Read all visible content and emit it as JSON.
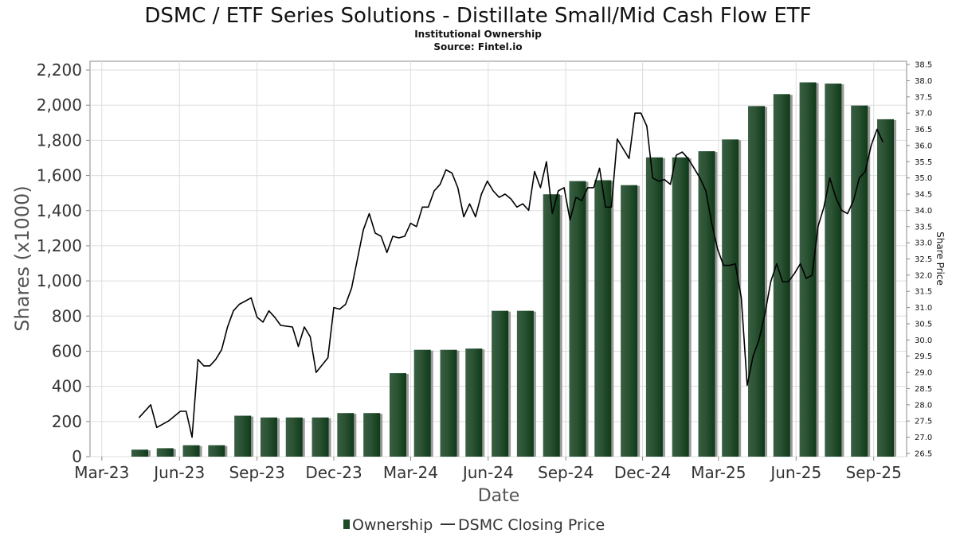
{
  "chart_data": {
    "type": "bar",
    "title": "DSMC / ETF Series Solutions - Distillate Small/Mid Cash Flow ETF",
    "subtitle": "Institutional Ownership",
    "source": "Source: Fintel.io",
    "xlabel": "Date",
    "ylabel": "Shares (x1000)",
    "y2label": "Share Price",
    "ylim": [
      0,
      2250
    ],
    "y2lim": [
      26.4,
      38.6
    ],
    "y_ticks": [
      0,
      200,
      400,
      600,
      800,
      1000,
      1200,
      1400,
      1600,
      1800,
      2000,
      2200
    ],
    "y_tick_labels": [
      "0",
      "200",
      "400",
      "600",
      "800",
      "1,000",
      "1,200",
      "1,400",
      "1,600",
      "1,800",
      "2,000",
      "2,200"
    ],
    "y2_ticks": [
      "26.5",
      "27.0",
      "27.5",
      "28.0",
      "28.5",
      "29.0",
      "29.5",
      "30.0",
      "30.5",
      "31.0",
      "31.5",
      "32.0",
      "32.5",
      "33.0",
      "33.5",
      "34.0",
      "34.5",
      "35.0",
      "35.5",
      "36.0",
      "36.5",
      "37.0",
      "37.5",
      "38.0",
      "38.5"
    ],
    "x_range": [
      "2023-02-15",
      "2025-10-10"
    ],
    "x_ticks": [
      {
        "date": "2023-03-01",
        "label": "Mar-23"
      },
      {
        "date": "2023-06-01",
        "label": "Jun-23"
      },
      {
        "date": "2023-09-01",
        "label": "Sep-23"
      },
      {
        "date": "2023-12-01",
        "label": "Dec-23"
      },
      {
        "date": "2024-03-01",
        "label": "Mar-24"
      },
      {
        "date": "2024-06-01",
        "label": "Jun-24"
      },
      {
        "date": "2024-09-01",
        "label": "Sep-24"
      },
      {
        "date": "2024-12-01",
        "label": "Dec-24"
      },
      {
        "date": "2025-03-01",
        "label": "Mar-25"
      },
      {
        "date": "2025-06-01",
        "label": "Jun-25"
      },
      {
        "date": "2025-09-01",
        "label": "Sep-25"
      }
    ],
    "series": [
      {
        "name": "Ownership",
        "kind": "bar",
        "color": "#1d4a27",
        "points": [
          {
            "date": "2023-04-15",
            "value": 40
          },
          {
            "date": "2023-05-15",
            "value": 48
          },
          {
            "date": "2023-06-15",
            "value": 65
          },
          {
            "date": "2023-07-15",
            "value": 65
          },
          {
            "date": "2023-08-15",
            "value": 233
          },
          {
            "date": "2023-09-15",
            "value": 223
          },
          {
            "date": "2023-10-15",
            "value": 223
          },
          {
            "date": "2023-11-15",
            "value": 223
          },
          {
            "date": "2023-12-15",
            "value": 248
          },
          {
            "date": "2024-01-15",
            "value": 248
          },
          {
            "date": "2024-02-15",
            "value": 475
          },
          {
            "date": "2024-03-15",
            "value": 608
          },
          {
            "date": "2024-04-15",
            "value": 608
          },
          {
            "date": "2024-05-15",
            "value": 615
          },
          {
            "date": "2024-06-15",
            "value": 830
          },
          {
            "date": "2024-07-15",
            "value": 830
          },
          {
            "date": "2024-08-15",
            "value": 1493
          },
          {
            "date": "2024-09-15",
            "value": 1568
          },
          {
            "date": "2024-10-15",
            "value": 1573
          },
          {
            "date": "2024-11-15",
            "value": 1545
          },
          {
            "date": "2024-12-15",
            "value": 1703
          },
          {
            "date": "2025-01-15",
            "value": 1703
          },
          {
            "date": "2025-02-15",
            "value": 1738
          },
          {
            "date": "2025-03-15",
            "value": 1805
          },
          {
            "date": "2025-04-15",
            "value": 1995
          },
          {
            "date": "2025-05-15",
            "value": 2063
          },
          {
            "date": "2025-06-15",
            "value": 2130
          },
          {
            "date": "2025-07-15",
            "value": 2123
          },
          {
            "date": "2025-08-15",
            "value": 1998
          },
          {
            "date": "2025-09-15",
            "value": 1920
          }
        ]
      },
      {
        "name": "DSMC Closing Price",
        "kind": "line",
        "axis": "right",
        "color": "#000000",
        "points": [
          [
            "2023-04-14",
            27.6
          ],
          [
            "2023-04-28",
            28.0
          ],
          [
            "2023-05-05",
            27.3
          ],
          [
            "2023-05-19",
            27.5
          ],
          [
            "2023-06-02",
            27.8
          ],
          [
            "2023-06-09",
            27.8
          ],
          [
            "2023-06-16",
            27.0
          ],
          [
            "2023-06-23",
            29.4
          ],
          [
            "2023-06-30",
            29.2
          ],
          [
            "2023-07-07",
            29.2
          ],
          [
            "2023-07-14",
            29.4
          ],
          [
            "2023-07-21",
            29.7
          ],
          [
            "2023-07-28",
            30.4
          ],
          [
            "2023-08-04",
            30.9
          ],
          [
            "2023-08-11",
            31.1
          ],
          [
            "2023-08-18",
            31.2
          ],
          [
            "2023-08-25",
            31.3
          ],
          [
            "2023-09-01",
            30.7
          ],
          [
            "2023-09-08",
            30.55
          ],
          [
            "2023-09-15",
            30.9
          ],
          [
            "2023-09-22",
            30.7
          ],
          [
            "2023-09-29",
            30.45
          ],
          [
            "2023-10-13",
            30.4
          ],
          [
            "2023-10-20",
            29.8
          ],
          [
            "2023-10-27",
            30.4
          ],
          [
            "2023-11-03",
            30.1
          ],
          [
            "2023-11-10",
            29.0
          ],
          [
            "2023-11-24",
            29.45
          ],
          [
            "2023-12-01",
            31.0
          ],
          [
            "2023-12-08",
            30.95
          ],
          [
            "2023-12-15",
            31.1
          ],
          [
            "2023-12-22",
            31.6
          ],
          [
            "2023-12-29",
            32.5
          ],
          [
            "2024-01-05",
            33.4
          ],
          [
            "2024-01-12",
            33.9
          ],
          [
            "2024-01-19",
            33.3
          ],
          [
            "2024-01-26",
            33.2
          ],
          [
            "2024-02-02",
            32.7
          ],
          [
            "2024-02-09",
            33.2
          ],
          [
            "2024-02-16",
            33.15
          ],
          [
            "2024-02-23",
            33.2
          ],
          [
            "2024-03-01",
            33.6
          ],
          [
            "2024-03-08",
            33.5
          ],
          [
            "2024-03-15",
            34.1
          ],
          [
            "2024-03-22",
            34.1
          ],
          [
            "2024-03-29",
            34.6
          ],
          [
            "2024-04-05",
            34.8
          ],
          [
            "2024-04-12",
            35.25
          ],
          [
            "2024-04-19",
            35.15
          ],
          [
            "2024-04-26",
            34.7
          ],
          [
            "2024-05-03",
            33.8
          ],
          [
            "2024-05-10",
            34.2
          ],
          [
            "2024-05-17",
            33.8
          ],
          [
            "2024-05-24",
            34.5
          ],
          [
            "2024-05-31",
            34.9
          ],
          [
            "2024-06-07",
            34.6
          ],
          [
            "2024-06-14",
            34.4
          ],
          [
            "2024-06-21",
            34.5
          ],
          [
            "2024-06-28",
            34.35
          ],
          [
            "2024-07-05",
            34.1
          ],
          [
            "2024-07-12",
            34.2
          ],
          [
            "2024-07-19",
            34.0
          ],
          [
            "2024-07-26",
            35.2
          ],
          [
            "2024-08-02",
            34.7
          ],
          [
            "2024-08-09",
            35.5
          ],
          [
            "2024-08-16",
            33.9
          ],
          [
            "2024-08-23",
            34.6
          ],
          [
            "2024-08-30",
            34.7
          ],
          [
            "2024-09-06",
            33.7
          ],
          [
            "2024-09-13",
            34.4
          ],
          [
            "2024-09-20",
            34.3
          ],
          [
            "2024-09-27",
            34.7
          ],
          [
            "2024-10-04",
            34.7
          ],
          [
            "2024-10-11",
            35.3
          ],
          [
            "2024-10-18",
            34.1
          ],
          [
            "2024-10-25",
            34.1
          ],
          [
            "2024-11-01",
            36.2
          ],
          [
            "2024-11-08",
            35.9
          ],
          [
            "2024-11-15",
            35.6
          ],
          [
            "2024-11-22",
            37.0
          ],
          [
            "2024-11-29",
            37.0
          ],
          [
            "2024-12-06",
            36.6
          ],
          [
            "2024-12-13",
            35.0
          ],
          [
            "2024-12-20",
            34.9
          ],
          [
            "2024-12-27",
            34.95
          ],
          [
            "2025-01-03",
            34.8
          ],
          [
            "2025-01-10",
            35.7
          ],
          [
            "2025-01-17",
            35.8
          ],
          [
            "2025-01-24",
            35.6
          ],
          [
            "2025-01-31",
            35.3
          ],
          [
            "2025-02-07",
            35.0
          ],
          [
            "2025-02-14",
            34.6
          ],
          [
            "2025-02-21",
            33.6
          ],
          [
            "2025-02-28",
            32.8
          ],
          [
            "2025-03-07",
            32.3
          ],
          [
            "2025-03-14",
            32.3
          ],
          [
            "2025-03-21",
            32.35
          ],
          [
            "2025-03-28",
            31.3
          ],
          [
            "2025-04-04",
            28.6
          ],
          [
            "2025-04-11",
            29.5
          ],
          [
            "2025-04-18",
            30.0
          ],
          [
            "2025-04-25",
            30.8
          ],
          [
            "2025-05-02",
            31.8
          ],
          [
            "2025-05-09",
            32.35
          ],
          [
            "2025-05-16",
            31.8
          ],
          [
            "2025-05-23",
            31.8
          ],
          [
            "2025-05-30",
            32.05
          ],
          [
            "2025-06-06",
            32.35
          ],
          [
            "2025-06-13",
            31.9
          ],
          [
            "2025-06-20",
            32.0
          ],
          [
            "2025-06-27",
            33.5
          ],
          [
            "2025-07-04",
            34.1
          ],
          [
            "2025-07-11",
            35.0
          ],
          [
            "2025-07-18",
            34.4
          ],
          [
            "2025-07-25",
            34.0
          ],
          [
            "2025-08-01",
            33.9
          ],
          [
            "2025-08-08",
            34.3
          ],
          [
            "2025-08-15",
            35.0
          ],
          [
            "2025-08-22",
            35.2
          ],
          [
            "2025-08-29",
            36.0
          ],
          [
            "2025-09-05",
            36.5
          ],
          [
            "2025-09-12",
            36.1
          ]
        ]
      }
    ],
    "legend": {
      "placement": "bottom-center",
      "entries": [
        {
          "label": "Ownership",
          "marker": "bar",
          "color": "#1d4a27"
        },
        {
          "label": "DSMC Closing Price",
          "marker": "line",
          "color": "#333333"
        }
      ]
    },
    "grid": true
  }
}
